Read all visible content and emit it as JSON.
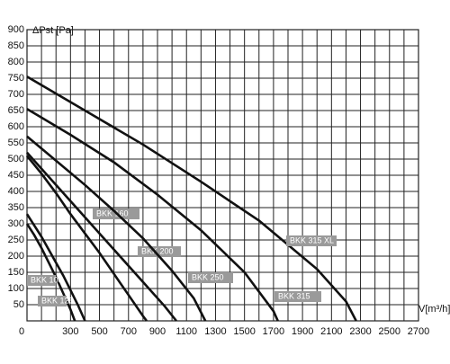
{
  "chart_data": {
    "type": "line",
    "y_label": "ΔPst [Pa]",
    "x_label": "V[m³/h]",
    "xlim": [
      0,
      2700
    ],
    "ylim": [
      0,
      900
    ],
    "xticks": [
      0,
      300,
      500,
      700,
      900,
      1100,
      1300,
      1500,
      1700,
      1900,
      2100,
      2300,
      2500,
      2700
    ],
    "x_minor_ticks": [
      100,
      200,
      400,
      600,
      800,
      1000,
      1200,
      1400,
      1600,
      1800,
      2000,
      2200,
      2400,
      2600
    ],
    "yticks": [
      50,
      100,
      150,
      200,
      250,
      300,
      350,
      400,
      450,
      500,
      550,
      600,
      650,
      700,
      750,
      800,
      850,
      900
    ],
    "grid": true,
    "series": [
      {
        "name": "BKK 100",
        "color": "#111111",
        "x": [
          0,
          50,
          100,
          150,
          200,
          250,
          300,
          330
        ],
        "values": [
          300,
          265,
          225,
          180,
          135,
          85,
          35,
          0
        ]
      },
      {
        "name": "BKK 125",
        "color": "#111111",
        "x": [
          0,
          50,
          100,
          150,
          200,
          250,
          300,
          350,
          400
        ],
        "values": [
          330,
          295,
          260,
          220,
          180,
          140,
          95,
          50,
          0
        ]
      },
      {
        "name": "BKK 160",
        "color": "#111111",
        "x": [
          0,
          100,
          200,
          300,
          400,
          500,
          600,
          700,
          800,
          825
        ],
        "values": [
          510,
          455,
          395,
          330,
          270,
          210,
          145,
          80,
          15,
          0
        ]
      },
      {
        "name": "BKK 200",
        "color": "#111111",
        "x": [
          0,
          200,
          400,
          600,
          800,
          950,
          1030
        ],
        "values": [
          520,
          420,
          320,
          220,
          120,
          45,
          0
        ]
      },
      {
        "name": "BKK 250",
        "color": "#111111",
        "x": [
          0,
          200,
          400,
          600,
          800,
          1000,
          1150,
          1230
        ],
        "values": [
          570,
          495,
          420,
          340,
          255,
          155,
          70,
          0
        ]
      },
      {
        "name": "BKK 315",
        "color": "#111111",
        "x": [
          0,
          300,
          600,
          900,
          1200,
          1500,
          1700,
          1730
        ],
        "values": [
          655,
          575,
          490,
          390,
          280,
          150,
          30,
          0
        ]
      },
      {
        "name": "BKK 315 XL",
        "color": "#111111",
        "x": [
          0,
          400,
          800,
          1200,
          1600,
          2000,
          2200,
          2270
        ],
        "values": [
          755,
          650,
          545,
          430,
          310,
          160,
          60,
          0
        ]
      }
    ]
  }
}
